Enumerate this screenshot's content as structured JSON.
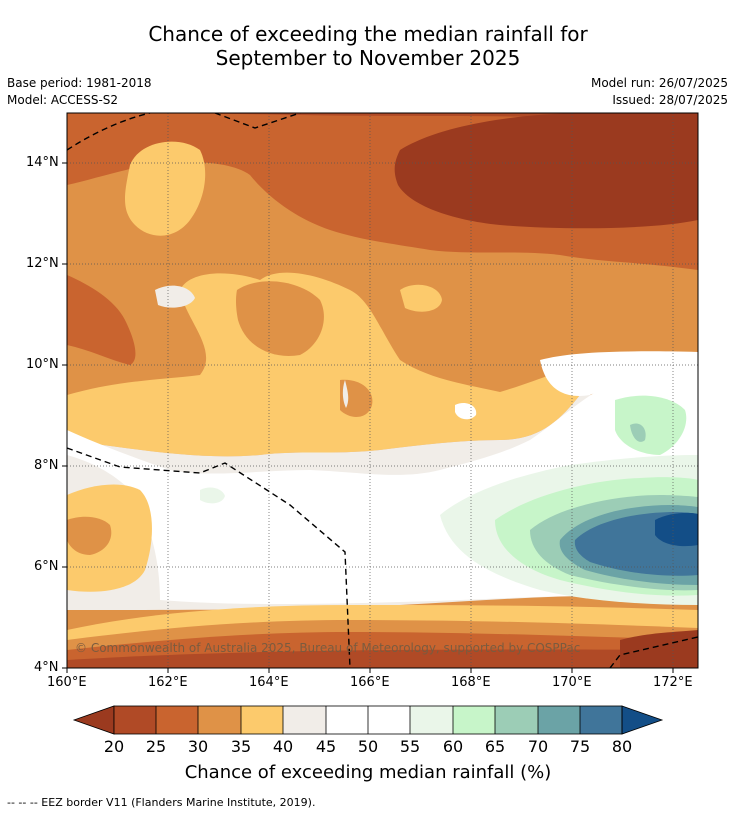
{
  "title": {
    "line1": "Chance of exceeding the median rainfall for",
    "line2": "September to November 2025"
  },
  "meta": {
    "base_period": "Base period: 1981-2018",
    "model": "Model: ACCESS-S2",
    "model_run": "Model run: 26/07/2025",
    "issued": "Issued: 28/07/2025"
  },
  "map": {
    "copyright": "© Commonwealth of Australia 2025, Bureau of Meteorology, supported by COSPPac",
    "lat_labels": [
      "14°N",
      "12°N",
      "10°N",
      "8°N",
      "6°N",
      "4°N"
    ],
    "lon_labels": [
      "160°E",
      "162°E",
      "164°E",
      "166°E",
      "168°E",
      "170°E",
      "172°E"
    ]
  },
  "colorbar": {
    "ticks": [
      "20",
      "25",
      "30",
      "35",
      "40",
      "45",
      "50",
      "55",
      "60",
      "65",
      "70",
      "75",
      "80"
    ],
    "colors": [
      "#9b3a1f",
      "#b04a26",
      "#c9642f",
      "#df9247",
      "#fcca6c",
      "#f1ede8",
      "#ffffff",
      "#ffffff",
      "#eaf6e9",
      "#c7f5c9",
      "#9ccdb6",
      "#6ba3a6",
      "#40759a",
      "#134e87"
    ],
    "label": "Chance of exceeding median rainfall (%)"
  },
  "footnote": "--  --  -- EEZ border V11 (Flanders Marine Institute, 2019)."
}
